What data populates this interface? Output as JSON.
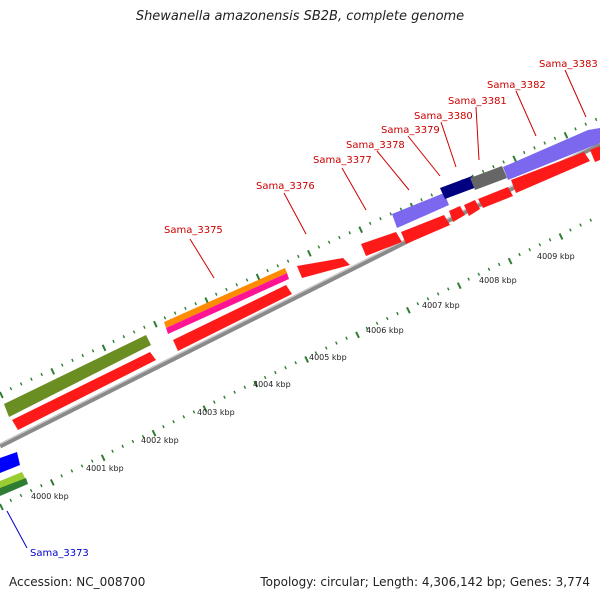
{
  "title": "Shewanella amazonensis SB2B, complete genome",
  "footer": {
    "accession": "Accession: NC_008700",
    "stats": "Topology: circular; Length: 4,306,142 bp; Genes: 3,774"
  },
  "scale_labels": [
    "4000 kbp",
    "4001 kbp",
    "4002 kbp",
    "4003 kbp",
    "4004 kbp",
    "4005 kbp",
    "4006 kbp",
    "4007 kbp",
    "4008 kbp",
    "4009 kbp"
  ],
  "gene_labels": [
    {
      "text": "Sama_3373",
      "color": "#0000cc"
    },
    {
      "text": "Sama_3375",
      "color": "#cc0000"
    },
    {
      "text": "Sama_3376",
      "color": "#cc0000"
    },
    {
      "text": "Sama_3377",
      "color": "#cc0000"
    },
    {
      "text": "Sama_3378",
      "color": "#cc0000"
    },
    {
      "text": "Sama_3379",
      "color": "#cc0000"
    },
    {
      "text": "Sama_3380",
      "color": "#cc0000"
    },
    {
      "text": "Sama_3381",
      "color": "#cc0000"
    },
    {
      "text": "Sama_3382",
      "color": "#cc0000"
    },
    {
      "text": "Sama_3383",
      "color": "#cc0000"
    }
  ],
  "colors": {
    "backbone": "#8a8a8a",
    "cds_red": "#ff1a1a",
    "olive": "#6b8e23",
    "orange": "#ff8c00",
    "magenta": "#ff1493",
    "lavender": "#7b68ee",
    "navy": "#000080",
    "grey_feature": "#666666",
    "blue": "#0000ff",
    "lime": "#9acd32",
    "tick": "#2e7d32"
  }
}
